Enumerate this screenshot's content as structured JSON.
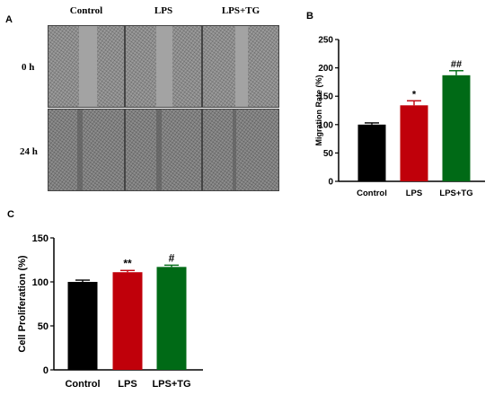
{
  "panel_a": {
    "letter": "A",
    "columns": [
      "Control",
      "LPS",
      "LPS+TG"
    ],
    "rows": [
      "0 h",
      "24 h"
    ]
  },
  "panel_b": {
    "letter": "B"
  },
  "panel_c": {
    "letter": "C"
  },
  "colors": {
    "control": "#000000",
    "lps": "#c0000a",
    "lps_tg": "#006a16"
  },
  "chart_data": [
    {
      "type": "bar",
      "panel": "B",
      "categories": [
        "Control",
        "LPS",
        "LPS+TG"
      ],
      "values": [
        100,
        134,
        187
      ],
      "errors": [
        3,
        8,
        8
      ],
      "annotations": [
        "",
        "*",
        "##"
      ],
      "ylabel": "Migration Rate (%)",
      "xlabel": "",
      "ylim": [
        0,
        250
      ],
      "yticks": [
        0,
        50,
        100,
        150,
        200,
        250
      ],
      "colors": [
        "#000000",
        "#c0000a",
        "#006a16"
      ],
      "grid": false
    },
    {
      "type": "bar",
      "panel": "C",
      "categories": [
        "Control",
        "LPS",
        "LPS+TG"
      ],
      "values": [
        100,
        111,
        117
      ],
      "errors": [
        2,
        2,
        2
      ],
      "annotations": [
        "",
        "**",
        "#"
      ],
      "ylabel": "Cell Proliferation (%)",
      "xlabel": "",
      "ylim": [
        0,
        150
      ],
      "yticks": [
        0,
        50,
        100,
        150
      ],
      "colors": [
        "#000000",
        "#c0000a",
        "#006a16"
      ],
      "grid": false
    }
  ]
}
